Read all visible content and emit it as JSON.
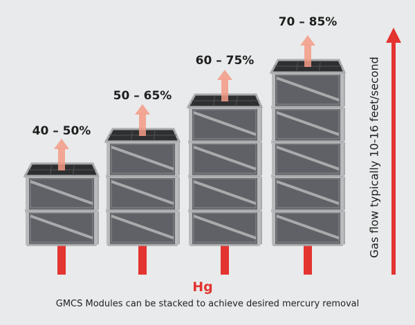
{
  "stacks": [
    {
      "label": "40 – 50%",
      "modules": 2
    },
    {
      "label": "50 – 65%",
      "modules": 3
    },
    {
      "label": "60 – 75%",
      "modules": 4
    },
    {
      "label": "70 – 85%",
      "modules": 5
    }
  ],
  "hg_label": "Hg",
  "caption": "GMCS Modules can be stacked to achieve desired mercury removal",
  "flow_label": "Gas flow typically 10-16 feet/second",
  "colors": {
    "background": "#e9eaeb",
    "module_face": "#5f6166",
    "module_frame": "#a9aaac",
    "module_top": "#2e2f31",
    "inlet_red": "#e3342f",
    "outlet_arrow": "#f39b85"
  }
}
